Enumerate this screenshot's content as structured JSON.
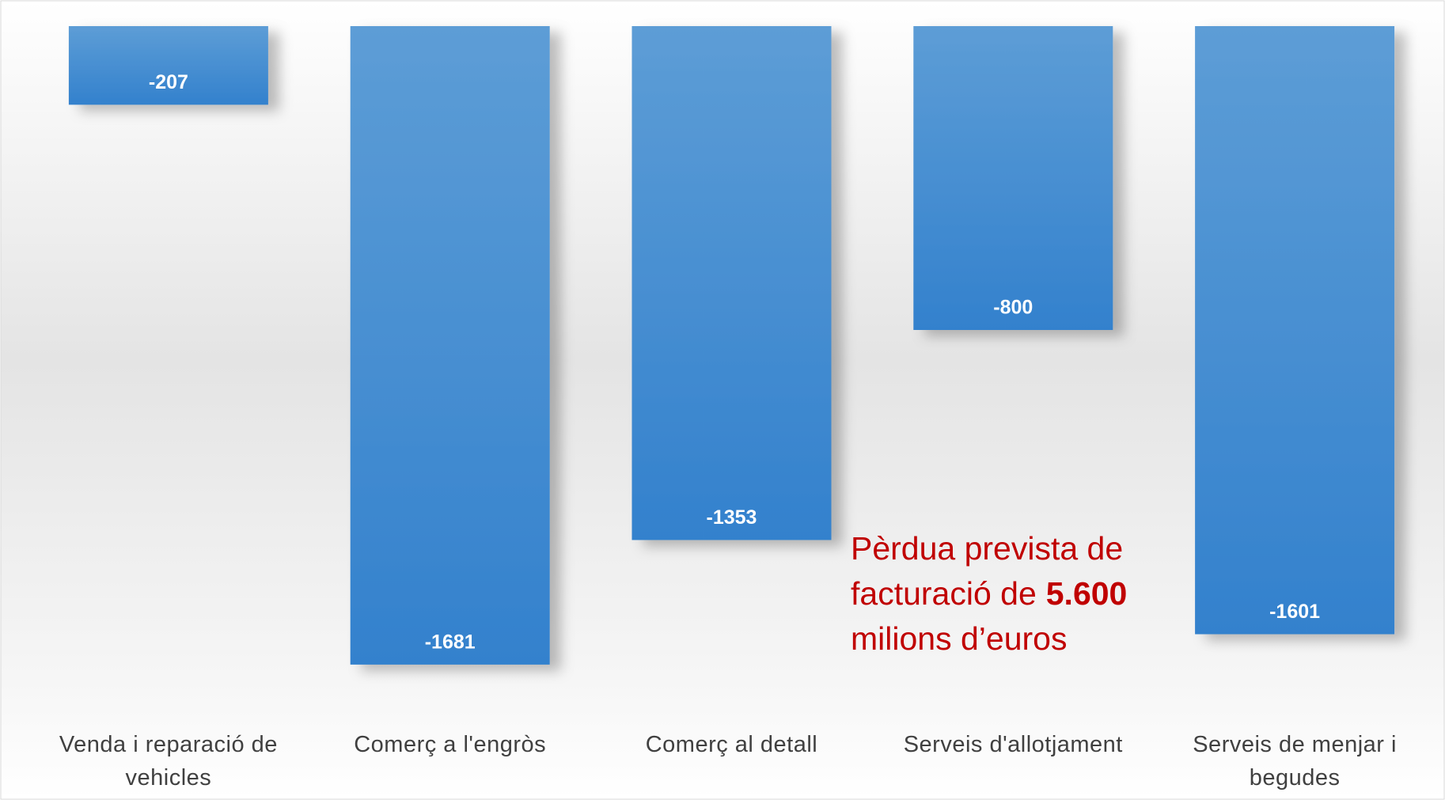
{
  "chart_data": {
    "type": "bar",
    "categories": [
      "Venda i reparació de vehicles",
      "Comerç a l'engròs",
      "Comerç al detall",
      "Serveis d'allotjament",
      "Serveis de menjar i begudes"
    ],
    "values": [
      -207,
      -1681,
      -1353,
      -800,
      -1601
    ],
    "color": "#3a86d0",
    "ylim": [
      -1800,
      0
    ],
    "annotation": {
      "lines": [
        "Pèrdua prevista de",
        "facturació de"
      ],
      "highlight": "5.600",
      "last_line": "milions d’euros",
      "color": "#c00000"
    }
  }
}
